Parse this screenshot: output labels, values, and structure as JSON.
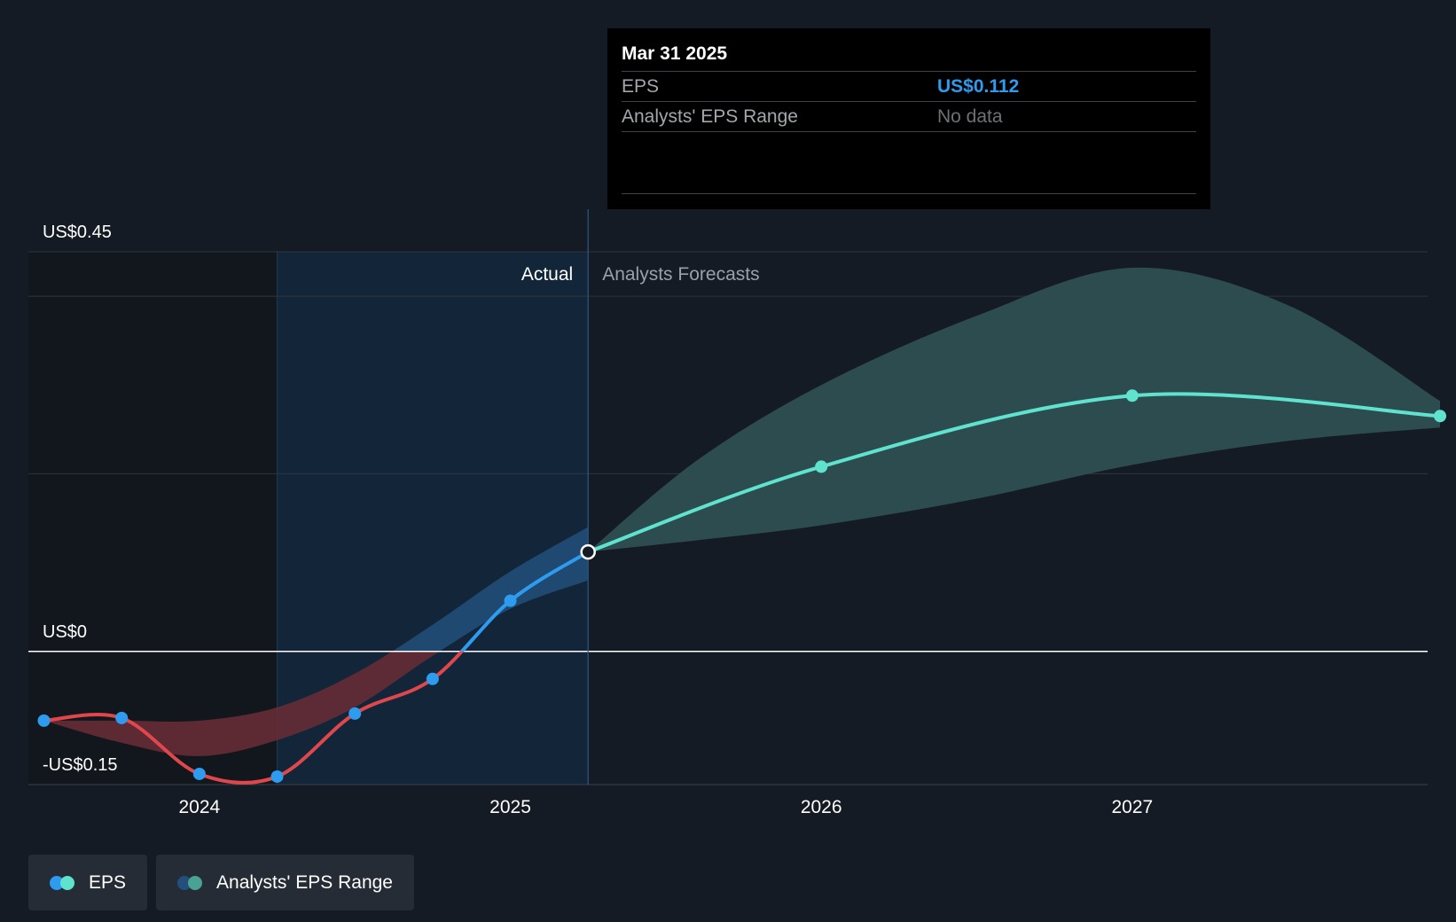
{
  "tooltip": {
    "date": "Mar 31 2025",
    "rows": [
      {
        "label": "EPS",
        "value": "US$0.112"
      },
      {
        "label": "Analysts' EPS Range",
        "value": "No data"
      }
    ]
  },
  "chart_data": {
    "type": "line",
    "y_tick_labels": [
      {
        "value": 0.45,
        "label": "US$0.45"
      },
      {
        "value": 0,
        "label": "US$0"
      },
      {
        "value": -0.15,
        "label": "-US$0.15"
      }
    ],
    "x_tick_labels": [
      "2024",
      "2025",
      "2026",
      "2027"
    ],
    "ylim": [
      -0.15,
      0.45
    ],
    "xlim": [
      2023.45,
      2027.95
    ],
    "region_labels": {
      "actual": "Actual",
      "forecast": "Analysts Forecasts"
    },
    "actual_start": 2024.25,
    "divider": 2025.25,
    "series": [
      {
        "name": "EPS",
        "actual_points": [
          {
            "x": 2023.5,
            "y": -0.078
          },
          {
            "x": 2023.75,
            "y": -0.075
          },
          {
            "x": 2024.0,
            "y": -0.138
          },
          {
            "x": 2024.25,
            "y": -0.141
          },
          {
            "x": 2024.5,
            "y": -0.07
          },
          {
            "x": 2024.75,
            "y": -0.031
          },
          {
            "x": 2025.0,
            "y": 0.057
          },
          {
            "x": 2025.25,
            "y": 0.112
          }
        ],
        "forecast_points": [
          {
            "x": 2025.25,
            "y": 0.112
          },
          {
            "x": 2026.0,
            "y": 0.208
          },
          {
            "x": 2027.0,
            "y": 0.288
          },
          {
            "x": 2027.99,
            "y": 0.265
          }
        ]
      },
      {
        "name": "Analysts' EPS Range",
        "past_band": [
          {
            "x": 2023.5,
            "y_low": -0.078,
            "y_high": -0.078
          },
          {
            "x": 2023.75,
            "y_low": -0.103,
            "y_high": -0.078
          },
          {
            "x": 2024.0,
            "y_low": -0.118,
            "y_high": -0.078
          },
          {
            "x": 2024.25,
            "y_low": -0.1,
            "y_high": -0.063
          },
          {
            "x": 2024.5,
            "y_low": -0.063,
            "y_high": -0.025
          },
          {
            "x": 2024.75,
            "y_low": -0.005,
            "y_high": 0.03
          },
          {
            "x": 2025.0,
            "y_low": 0.048,
            "y_high": 0.09
          },
          {
            "x": 2025.25,
            "y_low": 0.08,
            "y_high": 0.14
          }
        ],
        "forecast_band": [
          {
            "x": 2025.25,
            "y_low": 0.112,
            "y_high": 0.112
          },
          {
            "x": 2025.6,
            "y_low": 0.125,
            "y_high": 0.215
          },
          {
            "x": 2026.0,
            "y_low": 0.142,
            "y_high": 0.3
          },
          {
            "x": 2026.5,
            "y_low": 0.172,
            "y_high": 0.378
          },
          {
            "x": 2027.0,
            "y_low": 0.21,
            "y_high": 0.432
          },
          {
            "x": 2027.5,
            "y_low": 0.237,
            "y_high": 0.39
          },
          {
            "x": 2027.99,
            "y_low": 0.252,
            "y_high": 0.282
          }
        ]
      }
    ],
    "colors": {
      "eps_negative": "#e0474c",
      "eps_actual": "#2f9bef",
      "eps_forecast": "#5fe3cf",
      "band_negative": "#6b2d36",
      "band_actual": "#22507a",
      "band_forecast": "#2e4f52"
    }
  },
  "legend": {
    "items": [
      {
        "label": "EPS",
        "dot1": "#2f9bef",
        "dot2": "#5fe3cf"
      },
      {
        "label": "Analysts' EPS Range",
        "dot1": "#22507a",
        "dot2": "#4aa295"
      }
    ]
  }
}
